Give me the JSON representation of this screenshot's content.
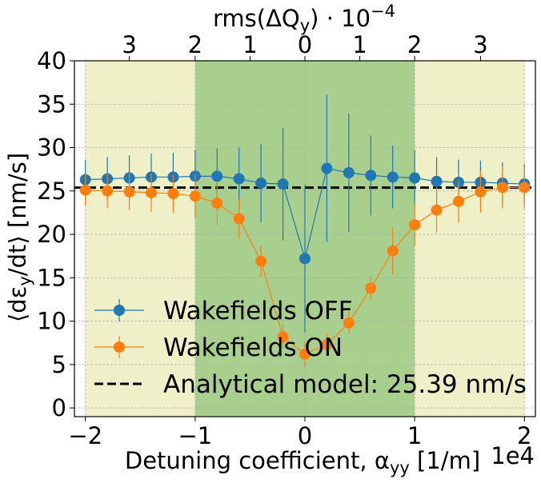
{
  "chart_data": {
    "type": "scatter",
    "xlabel": "Detuning coefficient, α",
    "xlabel_sub": "yy",
    "xlabel_unit": " [1/m]",
    "x_offset_text": "1e4",
    "ylabel": "⟨dε",
    "ylabel_sub": "y",
    "ylabel_unit": "/dt⟩ [nm/s]",
    "top_xlabel": "rms(ΔQ",
    "top_xlabel_sub": "y",
    "top_xlabel_tail": ") · 10",
    "top_xlabel_sup": "−4",
    "xlim": [
      -2.1,
      2.1
    ],
    "ylim": [
      -1,
      40
    ],
    "x_ticks": [
      -2,
      -1,
      0,
      1,
      2
    ],
    "y_ticks": [
      0,
      5,
      10,
      15,
      20,
      25,
      30,
      35,
      40
    ],
    "top_ticks": [
      {
        "label": "3",
        "value": -1.6
      },
      {
        "label": "2",
        "value": -1.0
      },
      {
        "label": "1",
        "value": -0.5
      },
      {
        "label": "0",
        "value": 0.0
      },
      {
        "label": "1",
        "value": 0.5
      },
      {
        "label": "2",
        "value": 1.0
      },
      {
        "label": "3",
        "value": 1.6
      }
    ],
    "grid": true,
    "legend_position": "lower-left",
    "shaded_regions": [
      {
        "x0": -2.0,
        "x1": -1.0,
        "color": "#f0f0c8"
      },
      {
        "x0": 1.0,
        "x1": 2.0,
        "color": "#f0f0c8"
      },
      {
        "x0": -1.0,
        "x1": 1.0,
        "color": "#a8cf8e"
      }
    ],
    "series": [
      {
        "name": "Wakefields OFF",
        "color": "#1f77b4",
        "x": [
          -2.0,
          -1.8,
          -1.6,
          -1.4,
          -1.2,
          -1.0,
          -0.8,
          -0.6,
          -0.4,
          -0.2,
          0.0,
          0.2,
          0.4,
          0.6,
          0.8,
          1.0,
          1.2,
          1.4,
          1.6,
          1.8,
          2.0
        ],
        "y": [
          26.3,
          26.4,
          26.5,
          26.6,
          26.6,
          26.7,
          26.7,
          26.4,
          25.9,
          25.8,
          17.2,
          27.6,
          27.1,
          26.8,
          26.6,
          26.5,
          26.1,
          26.0,
          26.0,
          25.9,
          25.8
        ],
        "yerr": [
          2.3,
          2.5,
          2.6,
          2.7,
          2.8,
          3.0,
          3.2,
          3.6,
          4.5,
          6.5,
          8.5,
          8.5,
          6.8,
          4.6,
          3.6,
          3.2,
          2.8,
          2.6,
          2.5,
          2.4,
          2.3
        ]
      },
      {
        "name": "Wakefields ON",
        "color": "#ff7f0e",
        "x": [
          -2.0,
          -1.8,
          -1.6,
          -1.4,
          -1.2,
          -1.0,
          -0.8,
          -0.6,
          -0.4,
          -0.2,
          0.0,
          0.2,
          0.4,
          0.6,
          0.8,
          1.0,
          1.2,
          1.4,
          1.6,
          1.8,
          2.0
        ],
        "y": [
          25.1,
          25.0,
          24.9,
          24.8,
          24.7,
          24.4,
          23.6,
          21.8,
          16.9,
          8.2,
          6.2,
          7.3,
          9.8,
          13.8,
          18.1,
          21.1,
          22.8,
          23.8,
          24.9,
          25.4,
          25.4
        ],
        "yerr": [
          1.8,
          2.0,
          2.1,
          2.2,
          2.2,
          2.5,
          2.5,
          2.3,
          1.8,
          1.4,
          1.5,
          1.3,
          1.3,
          1.4,
          2.7,
          2.5,
          2.6,
          2.5,
          2.4,
          2.4,
          2.4
        ]
      }
    ],
    "reference_line": {
      "name": "Analytical model: 25.39 nm/s",
      "y": 25.39,
      "color": "#000000",
      "style": "dashed"
    }
  }
}
